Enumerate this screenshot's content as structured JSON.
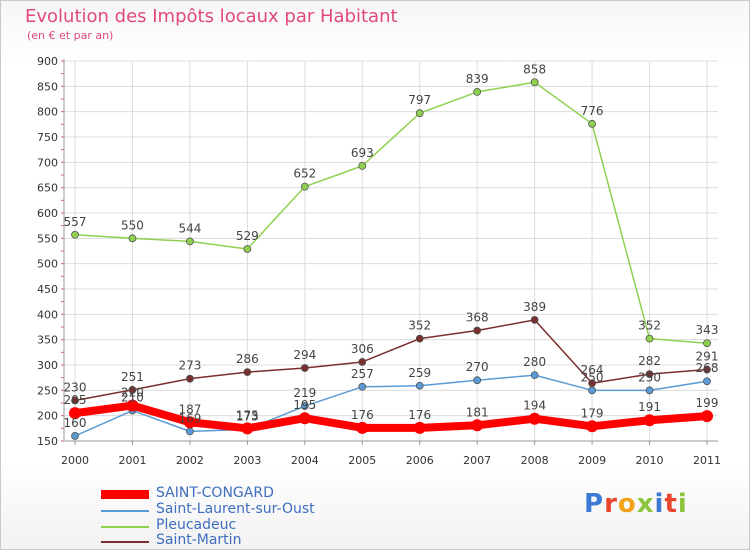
{
  "header": {
    "title": "Evolution des Impôts locaux par Habitant",
    "subtitle": "(en € et par an)"
  },
  "brand": {
    "letters": [
      "P",
      "r",
      "o",
      "x",
      "i",
      "t",
      "i"
    ],
    "colors": [
      "#3b7bd4",
      "#e8462c",
      "#f3a21b",
      "#8bc53f",
      "#3b7bd4",
      "#e8462c",
      "#8bc53f"
    ]
  },
  "chart_data": {
    "type": "line",
    "categories": [
      "2000",
      "2001",
      "2002",
      "2003",
      "2004",
      "2005",
      "2006",
      "2007",
      "2008",
      "2009",
      "2010",
      "2011"
    ],
    "ylim": [
      150,
      900
    ],
    "yticks": [
      150,
      200,
      250,
      300,
      350,
      400,
      450,
      500,
      550,
      600,
      650,
      700,
      750,
      800,
      850,
      900
    ],
    "grid": true,
    "legend_position": "bottom-left",
    "series": [
      {
        "name": "SAINT-CONGARD",
        "color": "#ff0000",
        "values": [
          205,
          220,
          187,
          175,
          195,
          176,
          176,
          181,
          194,
          179,
          191,
          199
        ],
        "labels": [
          "205",
          "220",
          "187",
          "175",
          "195",
          "176",
          "176",
          "181",
          "194",
          "179",
          "191",
          "199"
        ]
      },
      {
        "name": "Saint-Laurent-sur-Oust",
        "color": "#5a9bd5",
        "values": [
          160,
          210,
          169,
          173,
          219,
          257,
          259,
          270,
          280,
          250,
          250,
          268
        ],
        "labels": [
          "160",
          "210",
          "169",
          "173",
          "219",
          "257",
          "259",
          "270",
          "280",
          "250",
          "250",
          "268"
        ]
      },
      {
        "name": "Pleucadeuc",
        "color": "#8fd14f",
        "values": [
          557,
          550,
          544,
          529,
          652,
          693,
          797,
          839,
          858,
          776,
          352,
          343
        ],
        "labels": [
          "557",
          "550",
          "544",
          "529",
          "652",
          "693",
          "797",
          "839",
          "858",
          "776",
          "352",
          "343"
        ]
      },
      {
        "name": "Saint-Martin",
        "color": "#7a2e2e",
        "values": [
          230,
          251,
          273,
          286,
          294,
          306,
          352,
          368,
          389,
          264,
          282,
          291
        ],
        "labels": [
          "230",
          "251",
          "273",
          "286",
          "294",
          "306",
          "352",
          "368",
          "389",
          "264",
          "282",
          "291"
        ]
      }
    ]
  }
}
